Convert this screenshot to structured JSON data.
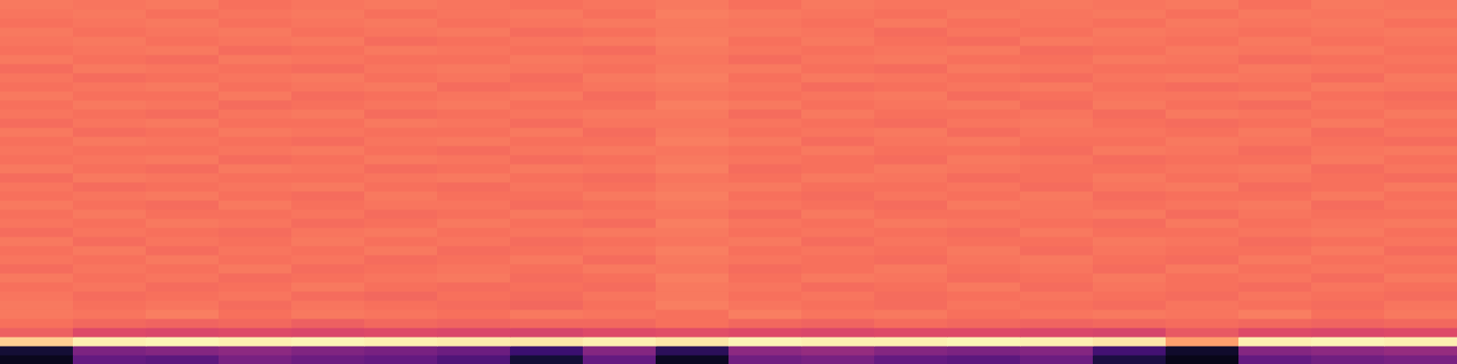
{
  "chart_data": {
    "type": "heatmap",
    "tick_labels": false,
    "xlim": [
      0,
      20
    ],
    "ylim": [
      0,
      40
    ],
    "zlim": [
      0,
      1
    ],
    "cells": [
      [
        0.05,
        0.3,
        0.28,
        0.35,
        0.32,
        0.3,
        0.25,
        0.1,
        0.3,
        0.06,
        0.33,
        0.35,
        0.3,
        0.28,
        0.32,
        0.12,
        0.04,
        0.3,
        0.33,
        0.35
      ],
      [
        0.1,
        0.36,
        0.38,
        0.4,
        0.37,
        0.35,
        0.32,
        0.2,
        0.38,
        0.16,
        0.4,
        0.42,
        0.38,
        0.36,
        0.38,
        0.22,
        0.08,
        0.38,
        0.4,
        0.42
      ],
      [
        0.9,
        0.97,
        0.98,
        0.97,
        0.98,
        0.97,
        0.96,
        0.95,
        0.97,
        0.95,
        0.98,
        0.97,
        0.97,
        0.98,
        0.97,
        0.95,
        0.8,
        0.97,
        0.98,
        0.97
      ],
      [
        0.66,
        0.6,
        0.59,
        0.6,
        0.59,
        0.6,
        0.59,
        0.58,
        0.6,
        0.61,
        0.6,
        0.59,
        0.6,
        0.6,
        0.59,
        0.58,
        0.64,
        0.6,
        0.59,
        0.6
      ],
      [
        0.7,
        0.68,
        0.67,
        0.68,
        0.66,
        0.68,
        0.67,
        0.68,
        0.68,
        0.7,
        0.68,
        0.67,
        0.69,
        0.68,
        0.67,
        0.68,
        0.69,
        0.68,
        0.67,
        0.68
      ],
      [
        0.72,
        0.71,
        0.73,
        0.7,
        0.72,
        0.71,
        0.7,
        0.72,
        0.71,
        0.7,
        0.73,
        0.71,
        0.72,
        0.7,
        0.71,
        0.72,
        0.71,
        0.73,
        0.7,
        0.72
      ],
      [
        0.72,
        0.7,
        0.71,
        0.69,
        0.71,
        0.7,
        0.69,
        0.68,
        0.7,
        0.73,
        0.71,
        0.7,
        0.69,
        0.71,
        0.7,
        0.69,
        0.71,
        0.7,
        0.69,
        0.71
      ],
      [
        0.71,
        0.69,
        0.7,
        0.71,
        0.69,
        0.68,
        0.7,
        0.69,
        0.71,
        0.72,
        0.7,
        0.71,
        0.69,
        0.7,
        0.71,
        0.7,
        0.69,
        0.71,
        0.7,
        0.69
      ],
      [
        0.7,
        0.71,
        0.69,
        0.7,
        0.72,
        0.7,
        0.69,
        0.7,
        0.69,
        0.72,
        0.71,
        0.69,
        0.7,
        0.72,
        0.69,
        0.71,
        0.7,
        0.69,
        0.71,
        0.7
      ],
      [
        0.72,
        0.7,
        0.71,
        0.69,
        0.7,
        0.71,
        0.72,
        0.69,
        0.7,
        0.73,
        0.7,
        0.72,
        0.71,
        0.69,
        0.7,
        0.72,
        0.7,
        0.71,
        0.69,
        0.72
      ],
      [
        0.69,
        0.71,
        0.7,
        0.72,
        0.69,
        0.7,
        0.71,
        0.7,
        0.72,
        0.71,
        0.69,
        0.7,
        0.72,
        0.7,
        0.71,
        0.69,
        0.72,
        0.7,
        0.71,
        0.7
      ],
      [
        0.71,
        0.7,
        0.72,
        0.7,
        0.71,
        0.69,
        0.7,
        0.72,
        0.69,
        0.72,
        0.71,
        0.7,
        0.69,
        0.71,
        0.72,
        0.7,
        0.69,
        0.72,
        0.7,
        0.71
      ],
      [
        0.7,
        0.72,
        0.69,
        0.71,
        0.7,
        0.72,
        0.69,
        0.7,
        0.71,
        0.73,
        0.7,
        0.71,
        0.7,
        0.72,
        0.69,
        0.71,
        0.7,
        0.7,
        0.72,
        0.69
      ],
      [
        0.72,
        0.69,
        0.71,
        0.7,
        0.72,
        0.7,
        0.71,
        0.69,
        0.7,
        0.71,
        0.72,
        0.69,
        0.71,
        0.7,
        0.7,
        0.72,
        0.71,
        0.69,
        0.7,
        0.71
      ],
      [
        0.69,
        0.71,
        0.7,
        0.69,
        0.71,
        0.72,
        0.7,
        0.71,
        0.72,
        0.72,
        0.7,
        0.71,
        0.7,
        0.69,
        0.72,
        0.7,
        0.7,
        0.71,
        0.72,
        0.7
      ],
      [
        0.71,
        0.7,
        0.72,
        0.71,
        0.69,
        0.7,
        0.72,
        0.7,
        0.69,
        0.73,
        0.71,
        0.7,
        0.72,
        0.71,
        0.7,
        0.69,
        0.72,
        0.7,
        0.71,
        0.72
      ],
      [
        0.7,
        0.72,
        0.7,
        0.7,
        0.71,
        0.69,
        0.7,
        0.72,
        0.71,
        0.71,
        0.69,
        0.72,
        0.7,
        0.7,
        0.71,
        0.72,
        0.69,
        0.71,
        0.7,
        0.7
      ],
      [
        0.72,
        0.7,
        0.69,
        0.72,
        0.7,
        0.71,
        0.71,
        0.69,
        0.7,
        0.72,
        0.71,
        0.7,
        0.69,
        0.72,
        0.71,
        0.7,
        0.71,
        0.72,
        0.69,
        0.71
      ],
      [
        0.7,
        0.71,
        0.72,
        0.7,
        0.69,
        0.72,
        0.7,
        0.7,
        0.72,
        0.73,
        0.7,
        0.69,
        0.71,
        0.7,
        0.72,
        0.69,
        0.7,
        0.7,
        0.72,
        0.7
      ],
      [
        0.71,
        0.69,
        0.7,
        0.71,
        0.72,
        0.7,
        0.69,
        0.71,
        0.7,
        0.72,
        0.72,
        0.7,
        0.7,
        0.71,
        0.69,
        0.71,
        0.72,
        0.69,
        0.7,
        0.72
      ],
      [
        0.69,
        0.72,
        0.71,
        0.7,
        0.7,
        0.71,
        0.72,
        0.7,
        0.69,
        0.71,
        0.7,
        0.72,
        0.71,
        0.69,
        0.7,
        0.72,
        0.7,
        0.71,
        0.7,
        0.69
      ],
      [
        0.72,
        0.7,
        0.69,
        0.72,
        0.71,
        0.69,
        0.7,
        0.72,
        0.71,
        0.73,
        0.69,
        0.7,
        0.72,
        0.71,
        0.7,
        0.7,
        0.71,
        0.72,
        0.69,
        0.71
      ],
      [
        0.7,
        0.71,
        0.72,
        0.69,
        0.7,
        0.72,
        0.71,
        0.69,
        0.7,
        0.72,
        0.71,
        0.7,
        0.69,
        0.72,
        0.71,
        0.69,
        0.7,
        0.7,
        0.72,
        0.7
      ],
      [
        0.71,
        0.7,
        0.7,
        0.71,
        0.72,
        0.7,
        0.69,
        0.71,
        0.72,
        0.71,
        0.7,
        0.72,
        0.7,
        0.7,
        0.69,
        0.72,
        0.71,
        0.69,
        0.71,
        0.72
      ],
      [
        0.7,
        0.72,
        0.71,
        0.7,
        0.69,
        0.71,
        0.72,
        0.7,
        0.7,
        0.73,
        0.72,
        0.69,
        0.71,
        0.72,
        0.7,
        0.7,
        0.72,
        0.71,
        0.7,
        0.69
      ],
      [
        0.72,
        0.69,
        0.7,
        0.72,
        0.71,
        0.7,
        0.7,
        0.72,
        0.69,
        0.72,
        0.7,
        0.71,
        0.72,
        0.69,
        0.71,
        0.71,
        0.7,
        0.72,
        0.69,
        0.71
      ],
      [
        0.69,
        0.71,
        0.72,
        0.7,
        0.7,
        0.72,
        0.71,
        0.69,
        0.71,
        0.71,
        0.71,
        0.7,
        0.69,
        0.71,
        0.72,
        0.7,
        0.69,
        0.7,
        0.72,
        0.7
      ],
      [
        0.71,
        0.7,
        0.69,
        0.71,
        0.72,
        0.69,
        0.7,
        0.71,
        0.72,
        0.72,
        0.69,
        0.72,
        0.7,
        0.7,
        0.71,
        0.69,
        0.72,
        0.71,
        0.7,
        0.72
      ],
      [
        0.7,
        0.72,
        0.71,
        0.69,
        0.7,
        0.71,
        0.72,
        0.7,
        0.7,
        0.73,
        0.72,
        0.7,
        0.71,
        0.72,
        0.69,
        0.72,
        0.7,
        0.69,
        0.71,
        0.7
      ],
      [
        0.72,
        0.7,
        0.7,
        0.72,
        0.69,
        0.7,
        0.71,
        0.72,
        0.69,
        0.71,
        0.7,
        0.71,
        0.72,
        0.69,
        0.7,
        0.71,
        0.71,
        0.72,
        0.7,
        0.69
      ],
      [
        0.7,
        0.71,
        0.72,
        0.7,
        0.71,
        0.72,
        0.69,
        0.7,
        0.71,
        0.72,
        0.71,
        0.69,
        0.7,
        0.71,
        0.72,
        0.7,
        0.69,
        0.7,
        0.72,
        0.71
      ],
      [
        0.71,
        0.69,
        0.7,
        0.71,
        0.72,
        0.7,
        0.71,
        0.69,
        0.72,
        0.73,
        0.7,
        0.72,
        0.71,
        0.7,
        0.69,
        0.71,
        0.72,
        0.71,
        0.69,
        0.72
      ],
      [
        0.69,
        0.72,
        0.71,
        0.7,
        0.69,
        0.71,
        0.72,
        0.71,
        0.7,
        0.72,
        0.72,
        0.7,
        0.69,
        0.72,
        0.71,
        0.7,
        0.7,
        0.72,
        0.71,
        0.7
      ],
      [
        0.72,
        0.7,
        0.69,
        0.72,
        0.71,
        0.7,
        0.7,
        0.72,
        0.71,
        0.71,
        0.69,
        0.71,
        0.72,
        0.7,
        0.7,
        0.72,
        0.71,
        0.69,
        0.7,
        0.71
      ],
      [
        0.7,
        0.71,
        0.72,
        0.69,
        0.7,
        0.72,
        0.71,
        0.7,
        0.69,
        0.72,
        0.71,
        0.7,
        0.71,
        0.72,
        0.69,
        0.7,
        0.72,
        0.71,
        0.72,
        0.7
      ],
      [
        0.71,
        0.72,
        0.7,
        0.71,
        0.72,
        0.69,
        0.7,
        0.71,
        0.72,
        0.73,
        0.7,
        0.72,
        0.7,
        0.69,
        0.72,
        0.71,
        0.7,
        0.72,
        0.7,
        0.71
      ],
      [
        0.72,
        0.7,
        0.71,
        0.72,
        0.7,
        0.71,
        0.72,
        0.69,
        0.7,
        0.72,
        0.72,
        0.71,
        0.69,
        0.71,
        0.7,
        0.72,
        0.71,
        0.7,
        0.71,
        0.72
      ],
      [
        0.7,
        0.71,
        0.72,
        0.7,
        0.71,
        0.72,
        0.7,
        0.71,
        0.72,
        0.72,
        0.71,
        0.7,
        0.72,
        0.7,
        0.71,
        0.7,
        0.72,
        0.71,
        0.72,
        0.7
      ],
      [
        0.71,
        0.72,
        0.7,
        0.71,
        0.72,
        0.7,
        0.71,
        0.72,
        0.7,
        0.73,
        0.72,
        0.71,
        0.7,
        0.72,
        0.71,
        0.72,
        0.7,
        0.72,
        0.71,
        0.72
      ],
      [
        0.72,
        0.71,
        0.72,
        0.7,
        0.71,
        0.72,
        0.71,
        0.7,
        0.71,
        0.72,
        0.7,
        0.72,
        0.71,
        0.71,
        0.72,
        0.71,
        0.72,
        0.7,
        0.72,
        0.71
      ]
    ]
  }
}
